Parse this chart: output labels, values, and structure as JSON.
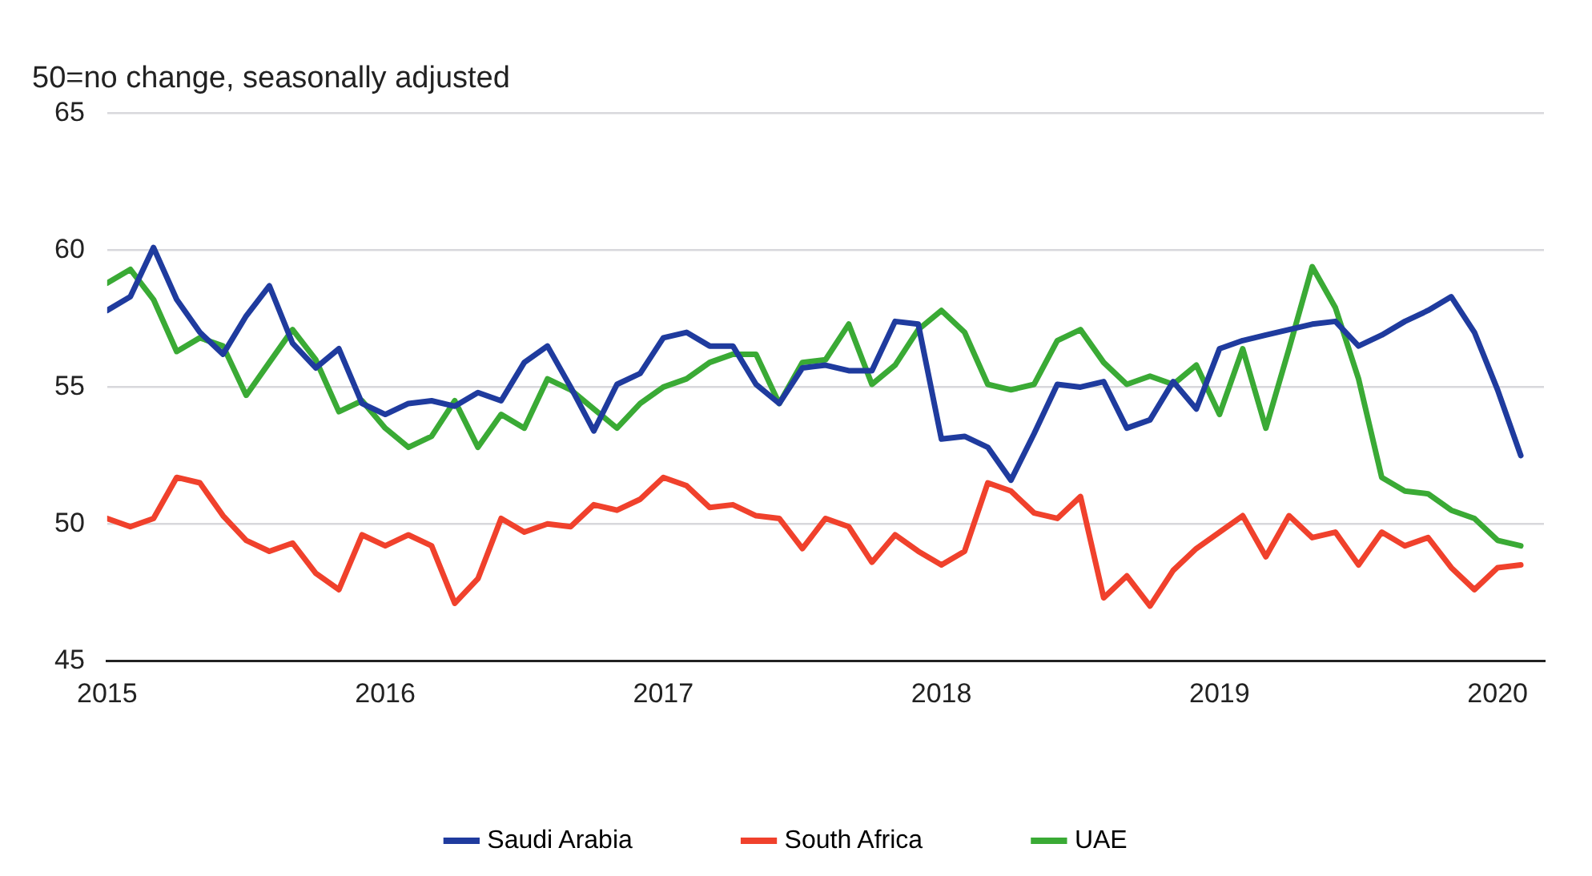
{
  "chart_data": {
    "type": "line",
    "title": "50=no change, seasonally adjusted",
    "x": [
      "2015-01",
      "2015-02",
      "2015-03",
      "2015-04",
      "2015-05",
      "2015-06",
      "2015-07",
      "2015-08",
      "2015-09",
      "2015-10",
      "2015-11",
      "2015-12",
      "2016-01",
      "2016-02",
      "2016-03",
      "2016-04",
      "2016-05",
      "2016-06",
      "2016-07",
      "2016-08",
      "2016-09",
      "2016-10",
      "2016-11",
      "2016-12",
      "2017-01",
      "2017-02",
      "2017-03",
      "2017-04",
      "2017-05",
      "2017-06",
      "2017-07",
      "2017-08",
      "2017-09",
      "2017-10",
      "2017-11",
      "2017-12",
      "2018-01",
      "2018-02",
      "2018-03",
      "2018-04",
      "2018-05",
      "2018-06",
      "2018-07",
      "2018-08",
      "2018-09",
      "2018-10",
      "2018-11",
      "2018-12",
      "2019-01",
      "2019-02",
      "2019-03",
      "2019-04",
      "2019-05",
      "2019-06",
      "2019-07",
      "2019-08",
      "2019-09",
      "2019-10",
      "2019-11",
      "2019-12",
      "2020-01",
      "2020-02"
    ],
    "series": [
      {
        "name": "Saudi Arabia",
        "color": "#1f3b9e",
        "values": [
          57.8,
          58.3,
          60.1,
          58.2,
          57.0,
          56.2,
          57.6,
          58.7,
          56.6,
          55.7,
          56.4,
          54.4,
          54.0,
          54.4,
          54.5,
          54.3,
          54.8,
          54.5,
          55.9,
          56.5,
          55.0,
          53.4,
          55.1,
          55.5,
          56.8,
          57.0,
          56.5,
          56.5,
          55.1,
          54.4,
          55.7,
          55.8,
          55.6,
          55.6,
          57.4,
          57.3,
          53.1,
          53.2,
          52.8,
          51.6,
          53.3,
          55.1,
          55.0,
          55.2,
          53.5,
          53.8,
          55.2,
          54.2,
          56.4,
          56.7,
          56.9,
          57.1,
          57.3,
          57.4,
          56.5,
          56.9,
          57.4,
          57.8,
          58.3,
          57.0,
          54.9,
          52.5
        ]
      },
      {
        "name": "South Africa",
        "color": "#f0412c",
        "values": [
          50.2,
          49.9,
          50.2,
          51.7,
          51.5,
          50.3,
          49.4,
          49.0,
          49.3,
          48.2,
          47.6,
          49.6,
          49.2,
          49.6,
          49.2,
          47.1,
          48.0,
          50.2,
          49.7,
          50.0,
          49.9,
          50.7,
          50.5,
          50.9,
          51.7,
          51.4,
          50.6,
          50.7,
          50.3,
          50.2,
          49.1,
          50.2,
          49.9,
          48.6,
          49.6,
          49.0,
          48.5,
          49.0,
          51.5,
          51.2,
          50.4,
          50.2,
          51.0,
          47.3,
          48.1,
          47.0,
          48.3,
          49.1,
          49.7,
          50.3,
          48.8,
          50.3,
          49.5,
          49.7,
          48.5,
          49.7,
          49.2,
          49.5,
          48.4,
          47.6,
          48.4,
          48.5
        ]
      },
      {
        "name": "UAE",
        "color": "#3aaa35",
        "values": [
          58.8,
          59.3,
          58.2,
          56.3,
          56.8,
          56.5,
          54.7,
          55.9,
          57.1,
          56.0,
          54.1,
          54.5,
          53.5,
          52.8,
          53.2,
          54.5,
          52.8,
          54.0,
          53.5,
          55.3,
          54.9,
          54.2,
          53.5,
          54.4,
          55.0,
          55.3,
          55.9,
          56.2,
          56.2,
          54.4,
          55.9,
          56.0,
          57.3,
          55.1,
          55.8,
          57.1,
          57.8,
          57.0,
          55.1,
          54.9,
          55.1,
          56.7,
          57.1,
          55.9,
          55.1,
          55.4,
          55.1,
          55.8,
          54.0,
          56.4,
          53.5,
          56.4,
          59.4,
          57.9,
          55.3,
          51.7,
          51.2,
          51.1,
          50.5,
          50.2,
          49.4,
          49.2
        ]
      }
    ],
    "xlim": [
      "2015-01",
      "2020-03"
    ],
    "xticks": [
      "2015",
      "2016",
      "2017",
      "2018",
      "2019",
      "2020"
    ],
    "ylim": [
      45,
      65
    ],
    "yticks": [
      45,
      50,
      55,
      60,
      65
    ],
    "grid": "y",
    "legend": "bottom",
    "marker": "none",
    "line_style": "solid"
  }
}
